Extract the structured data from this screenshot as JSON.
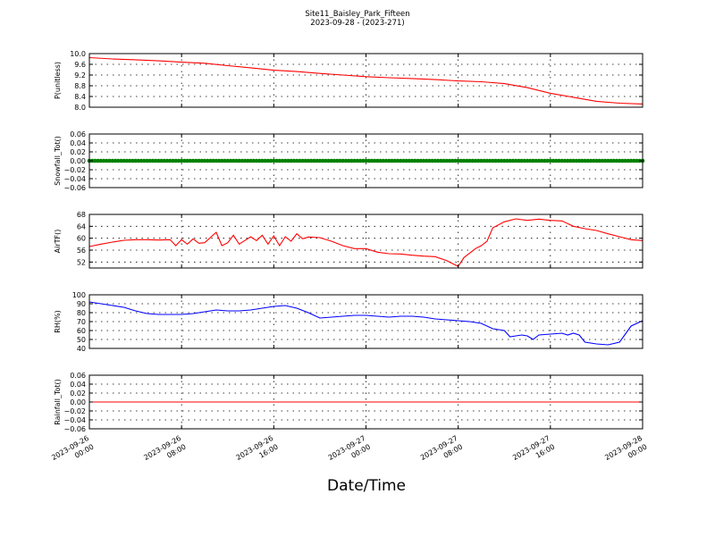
{
  "title": "Site11_Baisley_Park_Fifteen",
  "subtitle": "2023-09-28 - (2023-271)",
  "xlabel": "Date/Time",
  "x_ticks": [
    "2023-09-26 00:00",
    "2023-09-26 08:00",
    "2023-09-26 16:00",
    "2023-09-27 00:00",
    "2023-09-27 08:00",
    "2023-09-27 16:00",
    "2023-09-28 00:00"
  ],
  "chart_data": [
    {
      "type": "line",
      "ylabel": "P(unitless)",
      "ylim": [
        8.0,
        10.0
      ],
      "yticks": [
        8.0,
        8.4,
        8.8,
        9.2,
        9.6,
        10.0
      ],
      "ytick_labels": [
        "8.0",
        "8.4",
        "8.8",
        "9.2",
        "9.6",
        "10.0"
      ],
      "color": "#ff0000",
      "x_hours": [
        0,
        2,
        4,
        6,
        8,
        10,
        12,
        14,
        16,
        18,
        20,
        22,
        24,
        26,
        28,
        30,
        32,
        34,
        36,
        38,
        40,
        42,
        44,
        46,
        48
      ],
      "values": [
        9.85,
        9.8,
        9.77,
        9.73,
        9.68,
        9.64,
        9.55,
        9.47,
        9.38,
        9.33,
        9.26,
        9.2,
        9.14,
        9.1,
        9.07,
        9.03,
        8.98,
        8.95,
        8.88,
        8.73,
        8.52,
        8.37,
        8.22,
        8.15,
        8.12
      ]
    },
    {
      "type": "line",
      "ylabel": "Snowfall_Tot()",
      "ylim": [
        -0.06,
        0.06
      ],
      "yticks": [
        -0.06,
        -0.04,
        -0.02,
        0.0,
        0.02,
        0.04,
        0.06
      ],
      "ytick_labels": [
        "−0.06",
        "−0.04",
        "−0.02",
        "0.00",
        "0.02",
        "0.04",
        "0.06"
      ],
      "color": "#008000",
      "marker": "dot",
      "x_hours": [
        0,
        48
      ],
      "values": [
        0.0,
        0.0
      ]
    },
    {
      "type": "line",
      "ylabel": "AirTF()",
      "ylim": [
        50,
        68
      ],
      "yticks": [
        52,
        56,
        60,
        64,
        68
      ],
      "ytick_labels": [
        "52",
        "56",
        "60",
        "64",
        "68"
      ],
      "color": "#ff0000",
      "x_hours": [
        0,
        1,
        2,
        3,
        4,
        5,
        6,
        7,
        7.5,
        8,
        8.5,
        9,
        9.5,
        10,
        11,
        11.5,
        12,
        12.5,
        13,
        14,
        14.5,
        15,
        15.5,
        16,
        16.5,
        17,
        17.5,
        18,
        18.5,
        19,
        20,
        21,
        22,
        23,
        24,
        25,
        26,
        27,
        28,
        29,
        30,
        31,
        31.5,
        32,
        32.5,
        33,
        33.5,
        34,
        34.5,
        35,
        36,
        37,
        38,
        39,
        40,
        41,
        42,
        43,
        44,
        45,
        46,
        47,
        48
      ],
      "values": [
        57.2,
        58,
        58.7,
        59.3,
        59.5,
        59.5,
        59.4,
        59.5,
        57.5,
        59.5,
        58.0,
        59.8,
        58.3,
        58.5,
        62.0,
        57.5,
        58.5,
        61.0,
        58.0,
        60.5,
        59.2,
        61.0,
        58.0,
        60.8,
        57.5,
        60.5,
        59.0,
        61.5,
        59.8,
        60.4,
        60.2,
        59.0,
        57.5,
        56.5,
        56.5,
        55.3,
        54.8,
        54.7,
        54.3,
        54.0,
        53.8,
        52.5,
        51.5,
        50.5,
        53.5,
        55.0,
        56.5,
        57.5,
        59.0,
        63.5,
        65.5,
        66.5,
        66.0,
        66.4,
        66.0,
        65.8,
        64.0,
        63.2,
        62.6,
        61.5,
        60.5,
        59.5,
        59.2
      ]
    },
    {
      "type": "line",
      "ylabel": "RH(%)",
      "ylim": [
        40,
        100
      ],
      "yticks": [
        40,
        50,
        60,
        70,
        80,
        90,
        100
      ],
      "ytick_labels": [
        "40",
        "50",
        "60",
        "70",
        "80",
        "90",
        "100"
      ],
      "color": "#0000ff",
      "x_hours": [
        0,
        1,
        2,
        3,
        4,
        5,
        6,
        7,
        8,
        9,
        10,
        11,
        12,
        13,
        14,
        15,
        16,
        17,
        18,
        19,
        20,
        21,
        22,
        23,
        24,
        25,
        26,
        27,
        28,
        29,
        30,
        31,
        32,
        33,
        34,
        35,
        36,
        36.5,
        37,
        37.5,
        38,
        38.5,
        39,
        40,
        41,
        41.5,
        42,
        42.5,
        43,
        44,
        45,
        46,
        47,
        48
      ],
      "values": [
        92,
        90,
        88,
        86,
        82,
        79,
        78,
        78,
        78,
        79,
        81,
        83,
        82,
        82,
        83,
        85,
        87,
        88,
        85,
        80,
        74,
        75,
        76,
        77,
        77,
        76,
        75,
        76,
        76,
        75,
        73,
        72,
        71,
        70,
        68,
        62,
        60,
        53,
        54,
        55,
        54,
        50,
        55,
        56,
        57,
        55,
        57,
        55,
        47,
        45,
        44,
        47,
        65,
        71
      ]
    },
    {
      "type": "line",
      "ylabel": "Rainfall_Tot()",
      "ylim": [
        -0.06,
        0.06
      ],
      "yticks": [
        -0.06,
        -0.04,
        -0.02,
        0.0,
        0.02,
        0.04,
        0.06
      ],
      "ytick_labels": [
        "−0.06",
        "−0.04",
        "−0.02",
        "0.00",
        "0.02",
        "0.04",
        "0.06"
      ],
      "color": "#ff0000",
      "x_hours": [
        0,
        48
      ],
      "values": [
        0.0,
        0.0
      ]
    }
  ]
}
